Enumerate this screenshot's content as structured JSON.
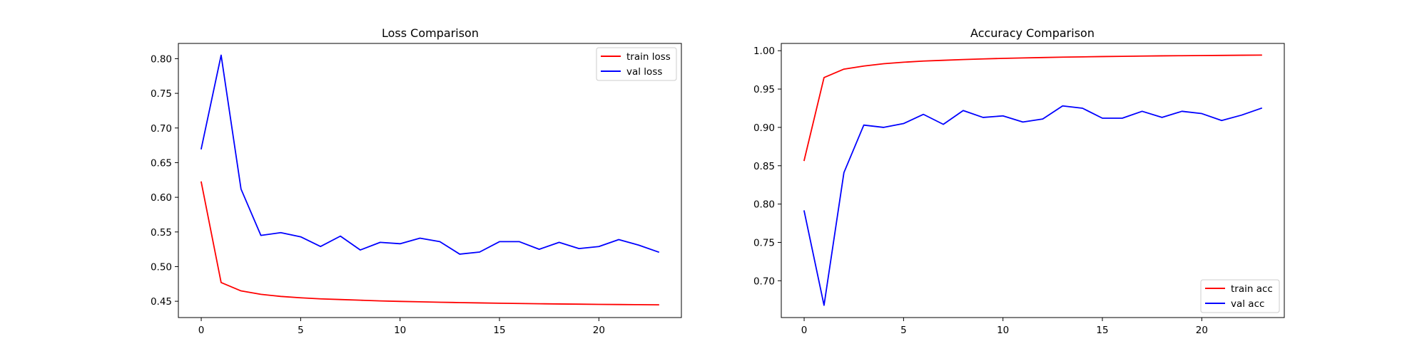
{
  "chart_data": [
    {
      "type": "line",
      "title": "Loss Comparison",
      "xlabel": "",
      "ylabel": "",
      "xlim": [
        -1.15,
        24.15
      ],
      "ylim": [
        0.4265,
        0.822
      ],
      "xticks": [
        0,
        5,
        10,
        15,
        20
      ],
      "yticks": [
        0.45,
        0.5,
        0.55,
        0.6,
        0.65,
        0.7,
        0.75,
        0.8
      ],
      "tick_decimals": 2,
      "grid": false,
      "legend_position": "top-right",
      "x": [
        0,
        1,
        2,
        3,
        4,
        5,
        6,
        7,
        8,
        9,
        10,
        11,
        12,
        13,
        14,
        15,
        16,
        17,
        18,
        19,
        20,
        21,
        22,
        23
      ],
      "series": [
        {
          "name": "train loss",
          "color": "#ff0000",
          "values": [
            0.622,
            0.477,
            0.465,
            0.46,
            0.457,
            0.455,
            0.4535,
            0.4525,
            0.4515,
            0.4505,
            0.4498,
            0.4492,
            0.4486,
            0.4481,
            0.4476,
            0.4472,
            0.4468,
            0.4464,
            0.4461,
            0.4458,
            0.4455,
            0.4453,
            0.4451,
            0.4449
          ]
        },
        {
          "name": "val loss",
          "color": "#0000ff",
          "values": [
            0.67,
            0.805,
            0.612,
            0.545,
            0.549,
            0.543,
            0.529,
            0.544,
            0.524,
            0.535,
            0.533,
            0.541,
            0.536,
            0.518,
            0.521,
            0.536,
            0.536,
            0.525,
            0.535,
            0.526,
            0.529,
            0.539,
            0.531,
            0.521
          ]
        }
      ]
    },
    {
      "type": "line",
      "title": "Accuracy Comparison",
      "xlabel": "",
      "ylabel": "",
      "xlim": [
        -1.15,
        24.15
      ],
      "ylim": [
        0.652,
        1.0095
      ],
      "xticks": [
        0,
        5,
        10,
        15,
        20
      ],
      "yticks": [
        0.7,
        0.75,
        0.8,
        0.85,
        0.9,
        0.95,
        1.0
      ],
      "tick_decimals": 2,
      "grid": false,
      "legend_position": "bottom-right",
      "x": [
        0,
        1,
        2,
        3,
        4,
        5,
        6,
        7,
        8,
        9,
        10,
        11,
        12,
        13,
        14,
        15,
        16,
        17,
        18,
        19,
        20,
        21,
        22,
        23
      ],
      "series": [
        {
          "name": "train acc",
          "color": "#ff0000",
          "values": [
            0.857,
            0.965,
            0.976,
            0.98,
            0.983,
            0.985,
            0.9865,
            0.9875,
            0.9885,
            0.9893,
            0.99,
            0.9906,
            0.9911,
            0.9916,
            0.992,
            0.9924,
            0.9927,
            0.993,
            0.9933,
            0.9935,
            0.9937,
            0.9939,
            0.9941,
            0.9943
          ]
        },
        {
          "name": "val acc",
          "color": "#0000ff",
          "values": [
            0.791,
            0.668,
            0.841,
            0.903,
            0.9,
            0.905,
            0.917,
            0.904,
            0.922,
            0.913,
            0.915,
            0.907,
            0.911,
            0.928,
            0.925,
            0.912,
            0.912,
            0.921,
            0.913,
            0.921,
            0.918,
            0.909,
            0.916,
            0.925
          ]
        }
      ]
    }
  ]
}
